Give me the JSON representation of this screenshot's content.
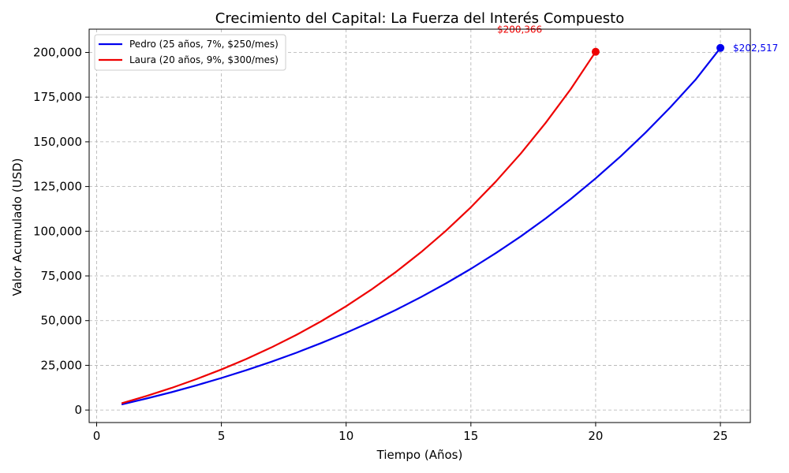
{
  "chart_data": {
    "type": "line",
    "title": "Crecimiento del Capital: La Fuerza del Interés Compuesto",
    "xlabel": "Tiempo (Años)",
    "ylabel": "Valor Acumulado (USD)",
    "xlim": [
      -0.3,
      26.2
    ],
    "ylim": [
      -7000,
      213000
    ],
    "xticks": [
      0,
      5,
      10,
      15,
      20,
      25
    ],
    "xtick_labels": [
      "0",
      "5",
      "10",
      "15",
      "20",
      "25"
    ],
    "yticks": [
      0,
      25000,
      50000,
      75000,
      100000,
      125000,
      150000,
      175000,
      200000
    ],
    "ytick_labels": [
      "0",
      "25,000",
      "50,000",
      "75,000",
      "100,000",
      "125,000",
      "150,000",
      "175,000",
      "200,000"
    ],
    "grid": true,
    "legend_position": "top-left",
    "series": [
      {
        "name": "Pedro (25 años, 7%, $250/mes)",
        "color": "#0000ee",
        "x": [
          1,
          2,
          3,
          4,
          5,
          6,
          7,
          8,
          9,
          10,
          11,
          12,
          13,
          14,
          15,
          16,
          17,
          18,
          19,
          20,
          21,
          22,
          23,
          24,
          25
        ],
        "values": [
          3100,
          6425,
          9990,
          13810,
          17900,
          22290,
          26990,
          32030,
          37430,
          43210,
          49410,
          56050,
          63170,
          70800,
          78980,
          87740,
          97130,
          107190,
          117970,
          129520,
          141900,
          155170,
          169390,
          184630,
          202517
        ],
        "end_label": "$202,517"
      },
      {
        "name": "Laura (20 años, 9%, $300/mes)",
        "color": "#ee0000",
        "x": [
          1,
          2,
          3,
          4,
          5,
          6,
          7,
          8,
          9,
          10,
          11,
          12,
          13,
          14,
          15,
          16,
          17,
          18,
          19,
          20
        ],
        "values": [
          3760,
          7870,
          12360,
          17280,
          22650,
          28530,
          34950,
          41980,
          49660,
          58060,
          67240,
          77280,
          88270,
          100280,
          113410,
          127770,
          143480,
          160650,
          179430,
          200366
        ],
        "end_label": "$200,366"
      }
    ]
  }
}
